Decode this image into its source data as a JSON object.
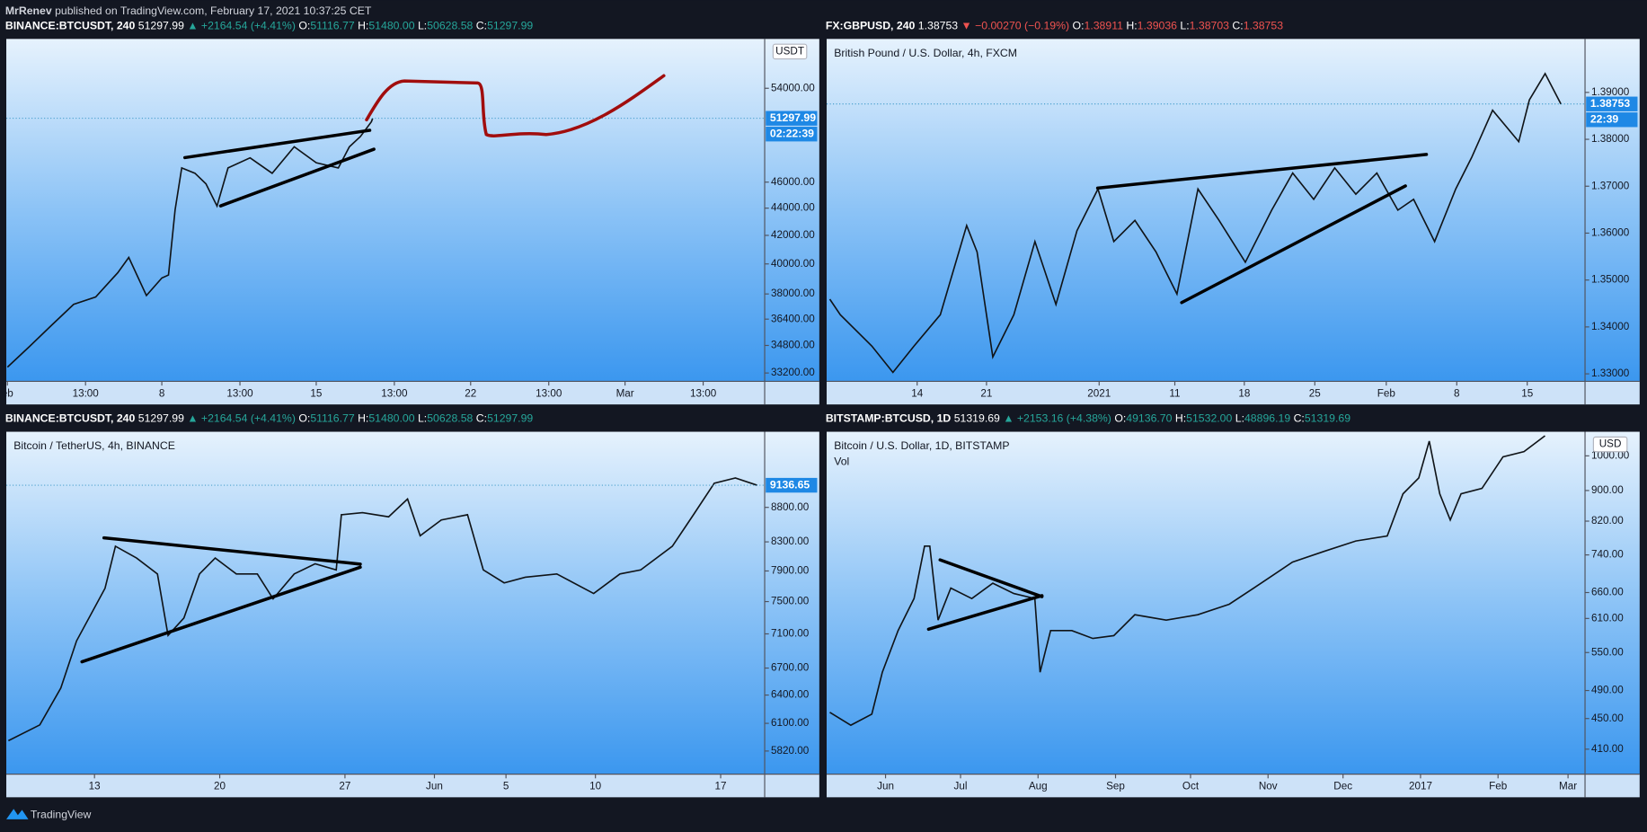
{
  "header": {
    "author": "MrRenev",
    "text": "published on TradingView.com, February 17, 2021 10:37:25 CET"
  },
  "footer": {
    "brand": "TradingView"
  },
  "chart_data": [
    {
      "type": "line",
      "color": "#101418",
      "legend": {
        "symbol": "BINANCE:BTCUSDT, 240",
        "last": "51297.99",
        "arrow": "▲",
        "change": "+2164.54 (+4.41%)",
        "direction_color": "#26a69a",
        "ohlc": [
          {
            "label": "O:",
            "value": "51116.77"
          },
          {
            "label": "H:",
            "value": "51480.00"
          },
          {
            "label": "L:",
            "value": "50628.58"
          },
          {
            "label": "C:",
            "value": "51297.99"
          }
        ]
      },
      "currency": "USDT",
      "x": [
        0,
        1,
        2,
        3,
        4,
        5,
        5.5,
        6.3,
        7,
        7.3,
        7.6,
        7.9,
        8.5,
        9,
        9.5,
        10,
        11,
        12,
        13,
        14,
        15,
        15.5,
        16,
        16.5,
        16.56
      ],
      "values": [
        33530,
        34740,
        36020,
        37330,
        37800,
        39400,
        40450,
        37900,
        39050,
        39250,
        43870,
        47130,
        46700,
        45860,
        44160,
        47130,
        47950,
        46700,
        48860,
        47550,
        47130,
        48860,
        49730,
        51000,
        51297.99
      ],
      "xlim": [
        -0.05,
        34.33
      ],
      "xticks": [
        {
          "value": 0,
          "label": "eb"
        },
        {
          "value": 3.5417,
          "label": "13:00"
        },
        {
          "value": 7,
          "label": "8"
        },
        {
          "value": 10.5417,
          "label": "13:00"
        },
        {
          "value": 14,
          "label": "15"
        },
        {
          "value": 17.5417,
          "label": "13:00"
        },
        {
          "value": 21,
          "label": "22"
        },
        {
          "value": 24.5417,
          "label": "13:00"
        },
        {
          "value": 28,
          "label": "Mar"
        },
        {
          "value": 31.5417,
          "label": "13:00"
        }
      ],
      "ylim": [
        32730,
        58750
      ],
      "log_scale": true,
      "yticks": [
        {
          "value": 54000,
          "label": "54000.00"
        },
        {
          "value": 46000,
          "label": "46000.00"
        },
        {
          "value": 44000,
          "label": "44000.00"
        },
        {
          "value": 42000,
          "label": "42000.00"
        },
        {
          "value": 40000,
          "label": "40000.00"
        },
        {
          "value": 38000,
          "label": "38000.00"
        },
        {
          "value": 36400,
          "label": "36400.00"
        },
        {
          "value": 34800,
          "label": "34800.00"
        },
        {
          "value": 33200,
          "label": "33200.00"
        }
      ],
      "last_price": {
        "value": 51297.99,
        "label": "51297.99"
      },
      "countdown": "02:22:39"
    },
    {
      "type": "line",
      "color": "#101418",
      "title": "British Pound / U.S. Dollar, 4h, FXCM",
      "legend": {
        "symbol": "FX:GBPUSD, 240",
        "last": "1.38753",
        "arrow": "▼",
        "change": "−0.00270 (−0.19%)",
        "direction_color": "#ef5350",
        "ohlc": [
          {
            "label": "O:",
            "value": "1.38911"
          },
          {
            "label": "H:",
            "value": "1.39036"
          },
          {
            "label": "L:",
            "value": "1.38703"
          },
          {
            "label": "C:",
            "value": "1.38753"
          }
        ]
      },
      "x": [
        0.22,
        0.97,
        3.21,
        4.7,
        6.19,
        8.06,
        9.93,
        10.67,
        11.79,
        13.28,
        14.78,
        16.27,
        17.76,
        19.25,
        20.37,
        21.87,
        23.36,
        24.85,
        26.34,
        27.84,
        29.7,
        31.57,
        33.06,
        34.55,
        36.04,
        37.54,
        39.03,
        40.52,
        41.64,
        43.13,
        44.63,
        45.75,
        47.24,
        49.1,
        49.85,
        50.97,
        52.09
      ],
      "values": [
        1.3459,
        1.3426,
        1.3359,
        1.3303,
        1.3359,
        1.3426,
        1.3616,
        1.356,
        1.3336,
        1.3426,
        1.3582,
        1.3448,
        1.3605,
        1.3694,
        1.3582,
        1.3627,
        1.356,
        1.347,
        1.3694,
        1.3627,
        1.3538,
        1.3649,
        1.3728,
        1.3672,
        1.3739,
        1.3683,
        1.3728,
        1.3649,
        1.3672,
        1.3582,
        1.3694,
        1.3761,
        1.3862,
        1.3795,
        1.3884,
        1.394,
        1.3875
      ],
      "xlim": [
        0,
        53.8
      ],
      "xticks": [
        {
          "value": 6.42,
          "label": "14"
        },
        {
          "value": 11.34,
          "label": "21"
        },
        {
          "value": 19.33,
          "label": "2021"
        },
        {
          "value": 24.7,
          "label": "11"
        },
        {
          "value": 29.63,
          "label": "18"
        },
        {
          "value": 34.63,
          "label": "25"
        },
        {
          "value": 39.7,
          "label": "Feb"
        },
        {
          "value": 44.7,
          "label": "8"
        },
        {
          "value": 49.7,
          "label": "15"
        }
      ],
      "ylim": [
        1.3284,
        1.4014
      ],
      "log_scale": false,
      "yticks": [
        {
          "value": 1.39,
          "label": "1.39000"
        },
        {
          "value": 1.38,
          "label": "1.38000"
        },
        {
          "value": 1.37,
          "label": "1.37000"
        },
        {
          "value": 1.36,
          "label": "1.36000"
        },
        {
          "value": 1.35,
          "label": "1.35000"
        },
        {
          "value": 1.34,
          "label": "1.34000"
        },
        {
          "value": 1.33,
          "label": "1.33000"
        }
      ],
      "last_price": {
        "value": 1.38753,
        "label": "1.38753"
      },
      "countdown": "22:39"
    },
    {
      "type": "line",
      "color": "#101418",
      "title": "Bitcoin / TetherUS, 4h, BINANCE",
      "legend": {
        "symbol": "BINANCE:BTCUSDT, 240",
        "last": "51297.99",
        "arrow": "▲",
        "change": "+2164.54 (+4.41%)",
        "direction_color": "#26a69a",
        "ohlc": [
          {
            "label": "O:",
            "value": "51116.77"
          },
          {
            "label": "H:",
            "value": "51480.00"
          },
          {
            "label": "L:",
            "value": "50628.58"
          },
          {
            "label": "C:",
            "value": "51297.99"
          }
        ]
      },
      "x": [
        7.19,
        8.94,
        10.12,
        11.0,
        12.59,
        13.17,
        14.35,
        15.52,
        16.11,
        17.0,
        17.87,
        18.75,
        19.93,
        21.1,
        21.98,
        23.16,
        24.33,
        25.51,
        25.8,
        26.98,
        28.44,
        29.5,
        30.2,
        31.38,
        32.85,
        33.73,
        34.9,
        36.08,
        37.84,
        39.9,
        41.37,
        42.53,
        44.3,
        45.48,
        46.64,
        47.82,
        49.04
      ],
      "values": [
        5923,
        6084,
        6477,
        7016,
        7672,
        8238,
        8075,
        7860,
        7081,
        7294,
        7860,
        8075,
        7860,
        7860,
        7535,
        7860,
        7997,
        7914,
        8691,
        8722,
        8660,
        8926,
        8386,
        8614,
        8691,
        7914,
        7742,
        7817,
        7860,
        7603,
        7860,
        7914,
        8238,
        8691,
        9169,
        9250,
        9136.65
      ],
      "xlim": [
        7.07,
        49.46
      ],
      "xticks": [
        {
          "value": 12,
          "label": "13"
        },
        {
          "value": 19,
          "label": "20"
        },
        {
          "value": 26,
          "label": "27"
        },
        {
          "value": 31,
          "label": "Jun"
        },
        {
          "value": 35,
          "label": "5"
        },
        {
          "value": 40,
          "label": "10"
        },
        {
          "value": 47,
          "label": "17"
        }
      ],
      "ylim": [
        5596,
        10005
      ],
      "log_scale": true,
      "yticks": [
        {
          "value": 8800,
          "label": "8800.00"
        },
        {
          "value": 8300,
          "label": "8300.00"
        },
        {
          "value": 7900,
          "label": "7900.00"
        },
        {
          "value": 7500,
          "label": "7500.00"
        },
        {
          "value": 7100,
          "label": "7100.00"
        },
        {
          "value": 6700,
          "label": "6700.00"
        },
        {
          "value": 6400,
          "label": "6400.00"
        },
        {
          "value": 6100,
          "label": "6100.00"
        },
        {
          "value": 5820,
          "label": "5820.00"
        }
      ],
      "last_price": {
        "value": 9136.65,
        "label": "9136.65"
      }
    },
    {
      "type": "line",
      "color": "#101418",
      "title": "Bitcoin / U.S. Dollar, 1D, BITSTAMP",
      "indicator": "Vol",
      "legend": {
        "symbol": "BITSTAMP:BTCUSD, 1D",
        "last": "51319.69",
        "arrow": "▲",
        "change": "+2153.16 (+4.38%)",
        "direction_color": "#26a69a",
        "ohlc": [
          {
            "label": "O:",
            "value": "49136.70"
          },
          {
            "label": "H:",
            "value": "51532.00"
          },
          {
            "label": "L:",
            "value": "48896.19"
          },
          {
            "label": "C:",
            "value": "51319.69"
          }
        ]
      },
      "currency": "USD",
      "x": [
        -22.3,
        -13.9,
        -5.5,
        -1.3,
        5.0,
        11.4,
        15.6,
        17.7,
        21.0,
        26.1,
        34.5,
        42.9,
        51.3,
        59.7,
        61.8,
        66.0,
        74.5,
        82.9,
        91.3,
        99.7,
        112.3,
        124.9,
        137.5,
        150.2,
        162.8,
        175.4,
        188.1,
        200.7,
        207.0,
        213.3,
        217.5,
        221.7,
        225.9,
        230.2,
        238.6,
        247.0,
        255.4,
        263.8
      ],
      "values": [
        458.6,
        441,
        456,
        518,
        588,
        648,
        760,
        760,
        607,
        669,
        648,
        679,
        658,
        648,
        518,
        588,
        588,
        574,
        579,
        617,
        607,
        617,
        637,
        679,
        724,
        748,
        772,
        784,
        891,
        935,
        1046,
        891,
        823,
        891,
        906,
        997,
        1013,
        1063
      ],
      "xlim": [
        -23.56,
        279.8
      ],
      "xticks": [
        {
          "value": 0,
          "label": "Jun"
        },
        {
          "value": 30,
          "label": "Jul"
        },
        {
          "value": 61,
          "label": "Aug"
        },
        {
          "value": 92,
          "label": "Sep"
        },
        {
          "value": 122,
          "label": "Oct"
        },
        {
          "value": 153,
          "label": "Nov"
        },
        {
          "value": 183,
          "label": "Dec"
        },
        {
          "value": 214,
          "label": "2017"
        },
        {
          "value": 245,
          "label": "Feb"
        },
        {
          "value": 273,
          "label": "Mar"
        }
      ],
      "ylim": [
        380,
        1076
      ],
      "log_scale": true,
      "yticks": [
        {
          "value": 1000,
          "label": "1000.00"
        },
        {
          "value": 900,
          "label": "900.00"
        },
        {
          "value": 820,
          "label": "820.00"
        },
        {
          "value": 740,
          "label": "740.00"
        },
        {
          "value": 660,
          "label": "660.00"
        },
        {
          "value": 610,
          "label": "610.00"
        },
        {
          "value": 550,
          "label": "550.00"
        },
        {
          "value": 490,
          "label": "490.00"
        },
        {
          "value": 450,
          "label": "450.00"
        },
        {
          "value": 410,
          "label": "410.00"
        }
      ]
    }
  ]
}
